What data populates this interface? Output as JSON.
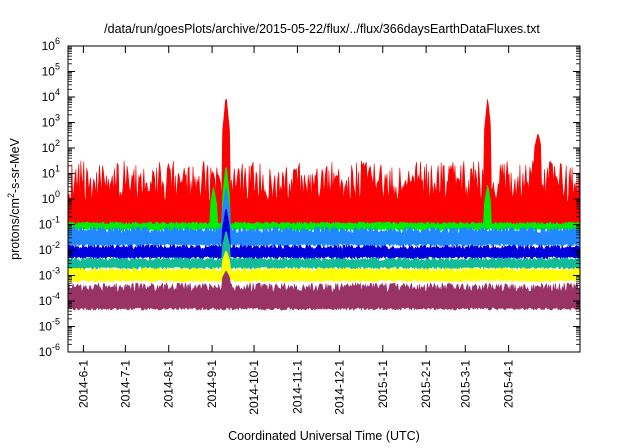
{
  "chart_data": {
    "type": "area",
    "title": "/data/run/goesPlots/archive/2015-05-22/flux/../flux/366daysEarthDataFluxes.txt",
    "xlabel": "Coordinated Universal Time (UTC)",
    "ylabel_parts": {
      "pre": "protons/cm",
      "sup": "2",
      "post": "-s-sr-MeV"
    },
    "y_scale": "log",
    "ylim_exp": [
      -6,
      6
    ],
    "y_tick_exponents": [
      -6,
      -5,
      -4,
      -3,
      -2,
      -1,
      0,
      1,
      2,
      3,
      4,
      5,
      6
    ],
    "y_tick_base": "10",
    "xlim": [
      "2014-05-21",
      "2015-05-22"
    ],
    "x_ticks": [
      {
        "label": "2014-6-1",
        "date": "2014-06-01"
      },
      {
        "label": "2014-7-1",
        "date": "2014-07-01"
      },
      {
        "label": "2014-8-1",
        "date": "2014-08-01"
      },
      {
        "label": "2014-9-1",
        "date": "2014-09-01"
      },
      {
        "label": "2014-10-1",
        "date": "2014-10-01"
      },
      {
        "label": "2014-11-1",
        "date": "2014-11-01"
      },
      {
        "label": "2014-12-1",
        "date": "2014-12-01"
      },
      {
        "label": "2015-1-1",
        "date": "2015-01-01"
      },
      {
        "label": "2015-2-1",
        "date": "2015-02-01"
      },
      {
        "label": "2015-3-1",
        "date": "2015-03-01"
      },
      {
        "label": "2015-4-1",
        "date": "2015-04-01"
      }
    ],
    "grid": false,
    "legend": "none",
    "series": [
      {
        "color": "#ff0000",
        "base_exp": [
          -1,
          1.5
        ],
        "spikes": [
          {
            "date": "2014-09-11",
            "exp": 4.1
          },
          {
            "date": "2015-03-17",
            "exp": 4.0
          },
          {
            "date": "2015-04-22",
            "exp": 2.6
          }
        ]
      },
      {
        "color": "#00ee00",
        "base_exp": [
          -1.2,
          -0.9
        ],
        "spikes": [
          {
            "date": "2014-09-11",
            "exp": 1.4
          },
          {
            "date": "2014-09-02",
            "exp": 0.5
          },
          {
            "date": "2015-03-17",
            "exp": 0.6
          }
        ]
      },
      {
        "color": "#2288ff",
        "base_exp": [
          -1.8,
          -1.1
        ],
        "spikes": [
          {
            "date": "2014-09-11",
            "exp": 0.5
          }
        ]
      },
      {
        "color": "#0000dd",
        "base_exp": [
          -2.3,
          -1.8
        ],
        "spikes": [
          {
            "date": "2014-09-11",
            "exp": -0.3
          }
        ]
      },
      {
        "color": "#11bb99",
        "base_exp": [
          -2.7,
          -2.3
        ],
        "spikes": [
          {
            "date": "2014-09-11",
            "exp": -1.2
          }
        ]
      },
      {
        "color": "#ffff00",
        "base_exp": [
          -3.2,
          -2.7
        ],
        "spikes": [
          {
            "date": "2014-09-11",
            "exp": -2.0
          }
        ]
      },
      {
        "color": "#993366",
        "base_exp": [
          -4.3,
          -3.3
        ],
        "spikes": [
          {
            "date": "2014-09-11",
            "exp": -2.8
          }
        ]
      }
    ]
  }
}
